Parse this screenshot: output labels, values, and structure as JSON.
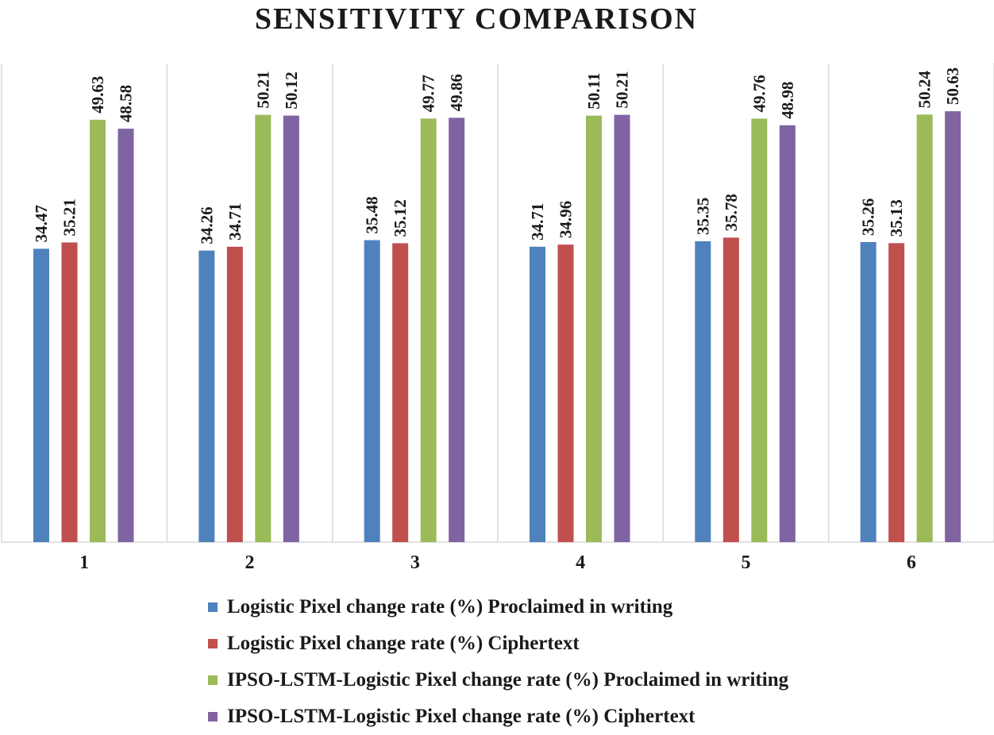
{
  "chart_data": {
    "type": "bar",
    "title": "SENSITIVITY COMPARISON",
    "xlabel": "",
    "ylabel": "",
    "categories": [
      "1",
      "2",
      "3",
      "4",
      "5",
      "6"
    ],
    "ylim": [
      0,
      54
    ],
    "grid": {
      "horizontal": false,
      "vertical_separators": true
    },
    "legend_position": "bottom",
    "series": [
      {
        "name": "Logistic Pixel change rate (%) Proclaimed in writing",
        "color": "#4f81bd",
        "values": [
          34.47,
          34.26,
          35.48,
          34.71,
          35.35,
          35.26
        ]
      },
      {
        "name": "Logistic Pixel change rate (%) Ciphertext",
        "color": "#c0504d",
        "values": [
          35.21,
          34.71,
          35.12,
          34.96,
          35.78,
          35.13
        ]
      },
      {
        "name": "IPSO-LSTM-Logistic Pixel change rate (%) Proclaimed in writing",
        "color": "#9bbb59",
        "values": [
          49.63,
          50.21,
          49.77,
          50.11,
          49.76,
          50.24
        ]
      },
      {
        "name": "IPSO-LSTM-Logistic Pixel change rate (%) Ciphertext",
        "color": "#8064a2",
        "values": [
          48.58,
          50.12,
          49.86,
          50.21,
          48.98,
          50.63
        ]
      }
    ]
  }
}
